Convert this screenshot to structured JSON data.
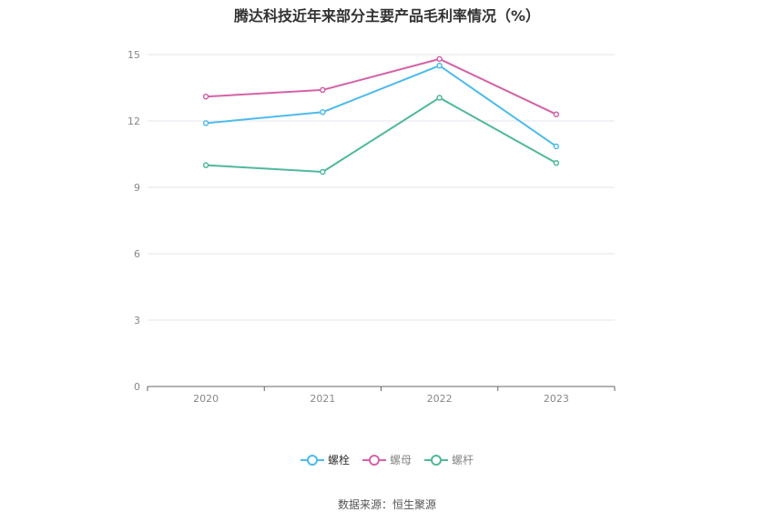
{
  "chart_data": {
    "type": "line",
    "title": "腾达科技近年来部分主要产品毛利率情况（%）",
    "categories": [
      "2020",
      "2021",
      "2022",
      "2023"
    ],
    "ylim": [
      0,
      15
    ],
    "yticks": [
      "0",
      "3",
      "6",
      "9",
      "12",
      "15"
    ],
    "grid": true,
    "legend_position": "bottom",
    "series": [
      {
        "name": "螺栓",
        "color": "#4dbbeb",
        "values": [
          11.9,
          12.4,
          14.5,
          10.85
        ]
      },
      {
        "name": "螺母",
        "color": "#d462a6",
        "values": [
          13.1,
          13.4,
          14.8,
          12.3
        ]
      },
      {
        "name": "螺杆",
        "color": "#4fb89b",
        "values": [
          10.0,
          9.7,
          13.05,
          10.1
        ]
      }
    ]
  },
  "source": "数据来源：恒生聚源"
}
